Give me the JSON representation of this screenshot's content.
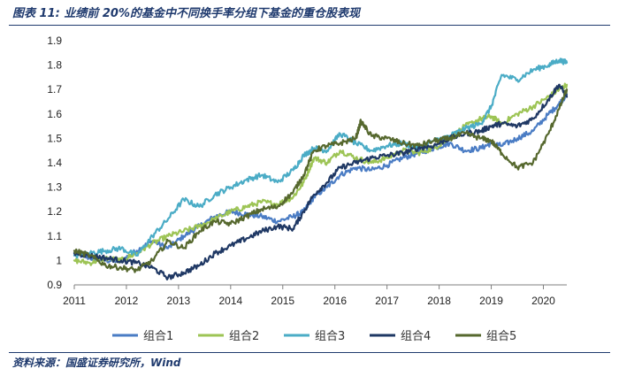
{
  "header": {
    "title": "图表 11:  业绩前 20%的基金中不同换手率分组下基金的重仓股表现"
  },
  "footer": {
    "source": "资料来源：国盛证券研究所，Wind"
  },
  "chart_data": {
    "type": "line",
    "title": "图表 11:  业绩前 20%的基金中不同换手率分组下基金的重仓股表现",
    "xlabel": "",
    "ylabel": "",
    "xlim": [
      2011,
      2020.45
    ],
    "ylim": [
      0.9,
      1.9
    ],
    "xticks": [
      2011,
      2012,
      2013,
      2014,
      2015,
      2016,
      2017,
      2018,
      2019,
      2020
    ],
    "yticks": [
      0.9,
      1,
      1.1,
      1.2,
      1.3,
      1.4,
      1.5,
      1.6,
      1.7,
      1.8,
      1.9
    ],
    "ytick_labels": [
      "0.9",
      "1",
      "1.1",
      "1.2",
      "1.3",
      "1.4",
      "1.5",
      "1.6",
      "1.7",
      "1.8",
      "1.9"
    ],
    "legend_position": "bottom",
    "grid": false,
    "series": [
      {
        "name": "组合1",
        "color": "#4a7cc4",
        "x": [
          2011,
          2011.3,
          2011.6,
          2011.9,
          2012.2,
          2012.5,
          2012.8,
          2013.1,
          2013.4,
          2013.7,
          2014.0,
          2014.3,
          2014.6,
          2014.9,
          2015.2,
          2015.4,
          2015.6,
          2015.85,
          2016.1,
          2016.4,
          2016.7,
          2017.0,
          2017.3,
          2017.6,
          2017.9,
          2018.2,
          2018.5,
          2018.8,
          2019.0,
          2019.2,
          2019.5,
          2019.8,
          2020.1,
          2020.3,
          2020.45
        ],
        "y": [
          1.03,
          1.01,
          1.0,
          1.0,
          1.04,
          1.08,
          1.05,
          1.1,
          1.14,
          1.18,
          1.2,
          1.19,
          1.18,
          1.16,
          1.18,
          1.2,
          1.26,
          1.3,
          1.35,
          1.38,
          1.37,
          1.39,
          1.42,
          1.44,
          1.46,
          1.48,
          1.45,
          1.46,
          1.48,
          1.47,
          1.5,
          1.53,
          1.6,
          1.64,
          1.68
        ]
      },
      {
        "name": "组合2",
        "color": "#9dc455",
        "x": [
          2011,
          2011.3,
          2011.6,
          2011.9,
          2012.2,
          2012.5,
          2012.8,
          2013.1,
          2013.4,
          2013.7,
          2014.0,
          2014.3,
          2014.6,
          2014.9,
          2015.2,
          2015.4,
          2015.6,
          2015.85,
          2016.1,
          2016.4,
          2016.7,
          2017.0,
          2017.3,
          2017.6,
          2017.9,
          2018.2,
          2018.5,
          2018.8,
          2019.0,
          2019.2,
          2019.5,
          2019.8,
          2020.1,
          2020.3,
          2020.45
        ],
        "y": [
          1.0,
          0.99,
          1.01,
          1.0,
          1.03,
          1.07,
          1.1,
          1.12,
          1.14,
          1.17,
          1.2,
          1.22,
          1.24,
          1.23,
          1.26,
          1.32,
          1.42,
          1.4,
          1.45,
          1.42,
          1.4,
          1.42,
          1.45,
          1.44,
          1.46,
          1.5,
          1.55,
          1.58,
          1.59,
          1.56,
          1.6,
          1.63,
          1.67,
          1.7,
          1.72
        ]
      },
      {
        "name": "组合3",
        "color": "#4bacc6",
        "x": [
          2011,
          2011.3,
          2011.6,
          2011.9,
          2012.2,
          2012.5,
          2012.8,
          2013.1,
          2013.4,
          2013.7,
          2014.0,
          2014.3,
          2014.6,
          2014.9,
          2015.2,
          2015.4,
          2015.6,
          2015.85,
          2016.1,
          2016.4,
          2016.7,
          2017.0,
          2017.3,
          2017.6,
          2017.9,
          2018.2,
          2018.5,
          2018.8,
          2019.0,
          2019.2,
          2019.5,
          2019.8,
          2020.1,
          2020.3,
          2020.45
        ],
        "y": [
          1.02,
          1.03,
          1.04,
          1.05,
          1.02,
          1.1,
          1.17,
          1.25,
          1.22,
          1.27,
          1.3,
          1.33,
          1.35,
          1.32,
          1.37,
          1.43,
          1.46,
          1.45,
          1.52,
          1.48,
          1.45,
          1.47,
          1.48,
          1.46,
          1.49,
          1.51,
          1.54,
          1.56,
          1.63,
          1.76,
          1.74,
          1.78,
          1.8,
          1.82,
          1.81
        ]
      },
      {
        "name": "组合4",
        "color": "#1f3864",
        "x": [
          2011,
          2011.3,
          2011.6,
          2011.9,
          2012.2,
          2012.5,
          2012.8,
          2013.1,
          2013.4,
          2013.7,
          2014.0,
          2014.3,
          2014.6,
          2014.9,
          2015.2,
          2015.4,
          2015.6,
          2015.85,
          2016.1,
          2016.4,
          2016.7,
          2017.0,
          2017.3,
          2017.6,
          2017.9,
          2018.2,
          2018.5,
          2018.8,
          2019.0,
          2019.2,
          2019.5,
          2019.8,
          2020.1,
          2020.3,
          2020.45
        ],
        "y": [
          1.03,
          1.02,
          1.01,
          1.0,
          0.99,
          0.97,
          0.93,
          0.95,
          0.98,
          1.03,
          1.06,
          1.09,
          1.12,
          1.14,
          1.13,
          1.2,
          1.27,
          1.32,
          1.38,
          1.4,
          1.42,
          1.43,
          1.44,
          1.46,
          1.47,
          1.5,
          1.52,
          1.53,
          1.55,
          1.56,
          1.55,
          1.58,
          1.66,
          1.72,
          1.67
        ]
      },
      {
        "name": "组合5",
        "color": "#56682e",
        "x": [
          2011,
          2011.3,
          2011.6,
          2011.9,
          2012.2,
          2012.5,
          2012.8,
          2013.1,
          2013.4,
          2013.7,
          2014.0,
          2014.3,
          2014.6,
          2014.9,
          2015.2,
          2015.4,
          2015.6,
          2015.85,
          2016.1,
          2016.4,
          2016.5,
          2016.7,
          2017.0,
          2017.3,
          2017.6,
          2017.9,
          2018.2,
          2018.5,
          2018.8,
          2019.0,
          2019.2,
          2019.5,
          2019.8,
          2020.1,
          2020.3,
          2020.45
        ],
        "y": [
          1.04,
          1.02,
          0.98,
          0.97,
          0.96,
          1.0,
          1.08,
          1.05,
          1.12,
          1.16,
          1.15,
          1.18,
          1.21,
          1.22,
          1.28,
          1.35,
          1.45,
          1.47,
          1.48,
          1.5,
          1.57,
          1.51,
          1.5,
          1.48,
          1.47,
          1.49,
          1.5,
          1.52,
          1.5,
          1.49,
          1.44,
          1.38,
          1.4,
          1.52,
          1.62,
          1.7
        ]
      }
    ]
  }
}
